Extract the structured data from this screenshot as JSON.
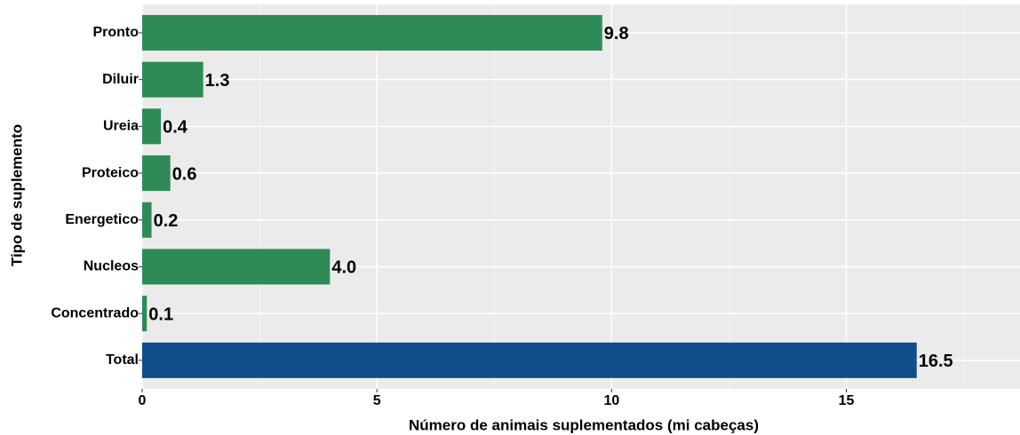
{
  "chart_data": {
    "type": "bar",
    "orientation": "horizontal",
    "xlabel": "Número de animais suplementados (mi cabeças)",
    "ylabel": "Tipo de suplemento",
    "categories": [
      "Pronto",
      "Diluir",
      "Ureia",
      "Proteico",
      "Energetico",
      "Nucleos",
      "Concentrado",
      "Total"
    ],
    "values": [
      9.8,
      1.3,
      0.4,
      0.6,
      0.2,
      4.0,
      0.1,
      16.5
    ],
    "value_labels": [
      "9.8",
      "1.3",
      "0.4",
      "0.6",
      "0.2",
      "4.0",
      "0.1",
      "16.5"
    ],
    "colors": [
      "#2e8b57",
      "#2e8b57",
      "#2e8b57",
      "#2e8b57",
      "#2e8b57",
      "#2e8b57",
      "#2e8b57",
      "#104e8b"
    ],
    "xlim": [
      0,
      18.7
    ],
    "xticks": [
      0,
      5,
      10,
      15
    ],
    "grid": true
  }
}
